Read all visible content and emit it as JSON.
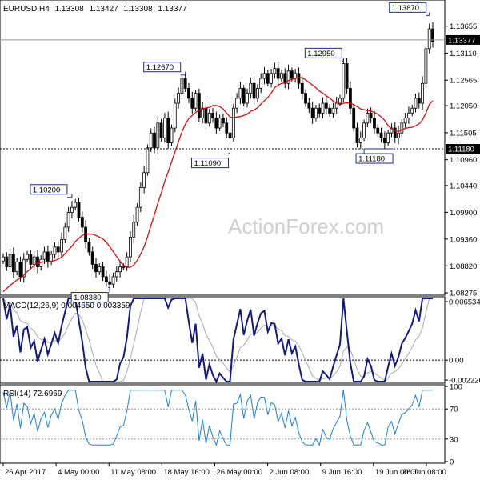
{
  "chart_data": [
    {
      "type": "candlestick",
      "title": "EURUSD,H4",
      "ohlc_readout": [
        "1.13308",
        "1.13427",
        "1.13308",
        "1.13377"
      ],
      "ylim": [
        1.0826,
        1.1415
      ],
      "y_ticks": [
        "1.13655",
        "1.13110",
        "1.12565",
        "1.12050",
        "1.11505",
        "1.10960",
        "1.10440",
        "1.09900",
        "1.09360",
        "1.08820",
        "1.08275"
      ],
      "price_line": {
        "label": "1.13377",
        "value": 1.13377
      },
      "support_line": {
        "label": "1.11180",
        "value": 1.1118
      },
      "annotations": [
        {
          "label": "1.10200",
          "value": 1.102
        },
        {
          "label": "1.08380",
          "value": 1.0838
        },
        {
          "label": "1.12670",
          "value": 1.1267
        },
        {
          "label": "1.11090",
          "value": 1.1109
        },
        {
          "label": "1.12950",
          "value": 1.1295
        },
        {
          "label": "1.11180",
          "value": 1.1118
        },
        {
          "label": "1.13870",
          "value": 1.1387
        }
      ],
      "x_ticks": [
        "26 Apr 2017",
        "4 May 00:00",
        "11 May 08:00",
        "18 May 16:00",
        "26 May 00:00",
        "2 Jun 08:00",
        "9 Jun 16:00",
        "19 Jun 00:00",
        "26 Jun 08:00"
      ],
      "close": [
        1.09,
        1.088,
        1.0905,
        1.087,
        1.089,
        1.086,
        1.0895,
        1.0905,
        1.0885,
        1.09,
        1.088,
        1.0895,
        1.091,
        1.089,
        1.0905,
        1.092,
        1.091,
        1.0935,
        1.096,
        1.099,
        1.1,
        1.101,
        1.098,
        1.096,
        1.093,
        1.091,
        1.0885,
        1.087,
        1.088,
        1.086,
        1.085,
        1.0845,
        1.086,
        1.087,
        1.088,
        1.088,
        1.09,
        1.094,
        1.097,
        1.1,
        1.104,
        1.107,
        1.112,
        1.115,
        1.112,
        1.117,
        1.114,
        1.118,
        1.113,
        1.116,
        1.121,
        1.123,
        1.126,
        1.124,
        1.122,
        1.12,
        1.123,
        1.118,
        1.12,
        1.117,
        1.119,
        1.118,
        1.116,
        1.118,
        1.117,
        1.115,
        1.114,
        1.12,
        1.122,
        1.124,
        1.121,
        1.123,
        1.125,
        1.122,
        1.124,
        1.126,
        1.127,
        1.125,
        1.127,
        1.128,
        1.126,
        1.127,
        1.125,
        1.1275,
        1.126,
        1.127,
        1.125,
        1.123,
        1.121,
        1.12,
        1.118,
        1.12,
        1.119,
        1.121,
        1.12,
        1.119,
        1.12,
        1.121,
        1.122,
        1.129,
        1.124,
        1.12,
        1.116,
        1.113,
        1.114,
        1.117,
        1.119,
        1.118,
        1.116,
        1.115,
        1.114,
        1.113,
        1.115,
        1.116,
        1.114,
        1.115,
        1.117,
        1.118,
        1.119,
        1.12,
        1.122,
        1.121,
        1.125,
        1.132,
        1.136,
        1.1334
      ],
      "ma": {
        "start": 1.083,
        "end": 1.1215
      },
      "macd": {
        "label": "MACD(12,26,9) 0.004650 0.003359",
        "ylim": [
          -0.0024,
          0.0069
        ],
        "y_ticks": [
          "0.006534",
          "0.00",
          "-0.002226"
        ],
        "zero_value": 0
      },
      "rsi": {
        "label": "RSI(14) 72.6969",
        "ylim": [
          0,
          100
        ],
        "y_ticks": [
          "100",
          "70",
          "30",
          "0"
        ],
        "levels": [
          70,
          30
        ]
      }
    }
  ],
  "watermark": "ActionForex.com"
}
